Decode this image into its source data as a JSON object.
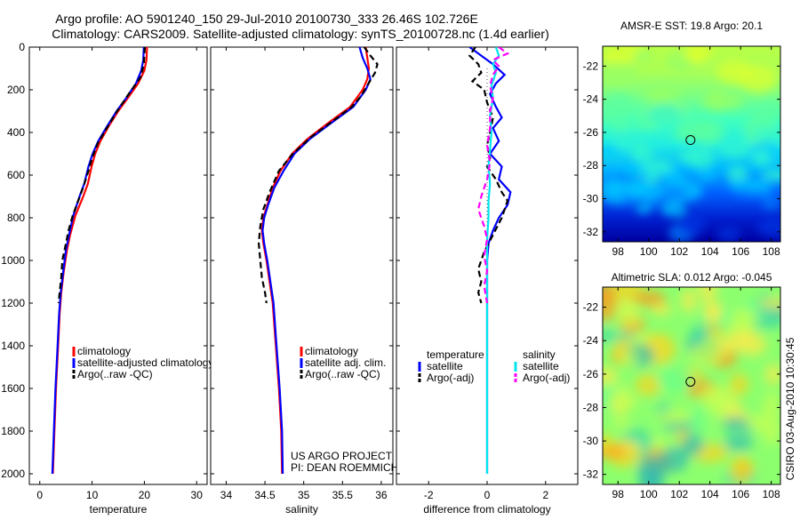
{
  "titles": {
    "line1": "Argo profile: AO 5901240_150 29-Jul-2010 20100730_333 26.46S 102.726E",
    "line2": "Climatology: CARS2009. Satellite-adjusted climatology: synTS_20100728.nc (1.4d earlier)"
  },
  "colors": {
    "climatology": "#ff0000",
    "satellite": "#0000ff",
    "argo": "#000000",
    "sat_salinity": "#00e5ee",
    "argo_adj_salinity": "#ff00ff"
  },
  "depth_axis": {
    "ticks": [
      "0",
      "200",
      "400",
      "600",
      "800",
      "1000",
      "1200",
      "1400",
      "1600",
      "1800",
      "2000"
    ],
    "values": [
      0,
      200,
      400,
      600,
      800,
      1000,
      1200,
      1400,
      1600,
      1800,
      2000
    ],
    "range": [
      0,
      2050
    ]
  },
  "chart_data": [
    {
      "id": "temperature",
      "type": "line",
      "xlabel": "temperature",
      "xlim": [
        -2,
        32
      ],
      "xticks": [
        0,
        10,
        20,
        30
      ],
      "xtick_labels": [
        "0",
        "10",
        "20",
        "30"
      ],
      "legend": [
        "climatology",
        "satellite-adjusted climatology",
        "Argo(..raw -QC)"
      ],
      "series": [
        {
          "name": "climatology",
          "style": "solid",
          "color": "#ff0000",
          "points": [
            [
              20.5,
              0
            ],
            [
              20.4,
              60
            ],
            [
              20.0,
              110
            ],
            [
              18.8,
              170
            ],
            [
              16.8,
              240
            ],
            [
              15.0,
              300
            ],
            [
              13.2,
              370
            ],
            [
              11.6,
              440
            ],
            [
              10.6,
              500
            ],
            [
              9.9,
              560
            ],
            [
              9.2,
              640
            ],
            [
              8.3,
              700
            ],
            [
              6.8,
              790
            ],
            [
              5.8,
              880
            ],
            [
              5.2,
              950
            ],
            [
              4.6,
              1050
            ],
            [
              4.1,
              1150
            ],
            [
              3.8,
              1250
            ],
            [
              3.5,
              1400
            ],
            [
              3.1,
              1600
            ],
            [
              2.8,
              1800
            ],
            [
              2.5,
              2000
            ]
          ]
        },
        {
          "name": "satellite-adjusted climatology",
          "style": "solid",
          "color": "#0000ff",
          "points": [
            [
              19.9,
              0
            ],
            [
              19.8,
              60
            ],
            [
              19.4,
              110
            ],
            [
              18.4,
              170
            ],
            [
              16.5,
              240
            ],
            [
              14.7,
              300
            ],
            [
              12.9,
              370
            ],
            [
              11.2,
              440
            ],
            [
              10.1,
              500
            ],
            [
              9.3,
              560
            ],
            [
              8.5,
              640
            ],
            [
              7.6,
              700
            ],
            [
              6.4,
              790
            ],
            [
              5.6,
              880
            ],
            [
              5.0,
              950
            ],
            [
              4.5,
              1050
            ],
            [
              4.0,
              1150
            ],
            [
              3.7,
              1250
            ],
            [
              3.4,
              1400
            ],
            [
              3.0,
              1600
            ],
            [
              2.7,
              1800
            ],
            [
              2.4,
              2000
            ]
          ]
        },
        {
          "name": "Argo(..raw -QC)",
          "style": "dashed",
          "color": "#000000",
          "points": [
            [
              20.1,
              0
            ],
            [
              19.9,
              80
            ],
            [
              19.3,
              140
            ],
            [
              17.0,
              220
            ],
            [
              14.8,
              300
            ],
            [
              12.8,
              380
            ],
            [
              11.1,
              450
            ],
            [
              10.0,
              520
            ],
            [
              9.3,
              580
            ],
            [
              8.4,
              650
            ],
            [
              7.5,
              710
            ],
            [
              6.3,
              790
            ],
            [
              5.5,
              860
            ],
            [
              5.0,
              920
            ],
            [
              4.3,
              1000
            ],
            [
              4.1,
              1080
            ],
            [
              3.8,
              1150
            ],
            [
              3.6,
              1200
            ]
          ]
        }
      ]
    },
    {
      "id": "salinity",
      "type": "line",
      "xlabel": "salinity",
      "xlim": [
        33.8,
        36.15
      ],
      "xticks": [
        34,
        34.5,
        35,
        35.5,
        36
      ],
      "xtick_labels": [
        "34",
        "34.5",
        "35",
        "35.5",
        "36"
      ],
      "legend": [
        "climatology",
        "satellite adj. clim.",
        "Argo(..raw -QC)"
      ],
      "annotation": [
        "US ARGO PROJECT",
        "PI: DEAN ROEMMICH"
      ],
      "series": [
        {
          "name": "climatology",
          "style": "solid",
          "color": "#ff0000",
          "points": [
            [
              35.8,
              0
            ],
            [
              35.82,
              50
            ],
            [
              35.84,
              100
            ],
            [
              35.82,
              150
            ],
            [
              35.76,
              200
            ],
            [
              35.6,
              280
            ],
            [
              35.3,
              360
            ],
            [
              35.05,
              430
            ],
            [
              34.85,
              500
            ],
            [
              34.7,
              580
            ],
            [
              34.6,
              660
            ],
            [
              34.53,
              740
            ],
            [
              34.48,
              800
            ],
            [
              34.46,
              860
            ],
            [
              34.48,
              920
            ],
            [
              34.52,
              1000
            ],
            [
              34.56,
              1100
            ],
            [
              34.6,
              1200
            ],
            [
              34.64,
              1400
            ],
            [
              34.68,
              1600
            ],
            [
              34.71,
              1800
            ],
            [
              34.72,
              2000
            ]
          ]
        },
        {
          "name": "satellite adj. clim.",
          "style": "solid",
          "color": "#0000ff",
          "points": [
            [
              35.72,
              0
            ],
            [
              35.76,
              50
            ],
            [
              35.82,
              100
            ],
            [
              35.86,
              150
            ],
            [
              35.8,
              200
            ],
            [
              35.64,
              280
            ],
            [
              35.34,
              360
            ],
            [
              35.08,
              430
            ],
            [
              34.88,
              500
            ],
            [
              34.74,
              580
            ],
            [
              34.62,
              660
            ],
            [
              34.54,
              740
            ],
            [
              34.49,
              800
            ],
            [
              34.47,
              860
            ],
            [
              34.49,
              920
            ],
            [
              34.53,
              1000
            ],
            [
              34.57,
              1100
            ],
            [
              34.61,
              1200
            ],
            [
              34.65,
              1400
            ],
            [
              34.69,
              1600
            ],
            [
              34.72,
              1800
            ],
            [
              34.73,
              2000
            ]
          ]
        },
        {
          "name": "Argo(..raw -QC)",
          "style": "dashed",
          "color": "#000000",
          "points": [
            [
              35.78,
              0
            ],
            [
              35.86,
              40
            ],
            [
              35.95,
              80
            ],
            [
              35.92,
              120
            ],
            [
              35.82,
              180
            ],
            [
              35.74,
              230
            ],
            [
              35.62,
              280
            ],
            [
              35.4,
              340
            ],
            [
              35.1,
              420
            ],
            [
              34.86,
              500
            ],
            [
              34.68,
              580
            ],
            [
              34.56,
              680
            ],
            [
              34.48,
              760
            ],
            [
              34.44,
              840
            ],
            [
              34.42,
              920
            ],
            [
              34.44,
              1000
            ],
            [
              34.46,
              1080
            ],
            [
              34.5,
              1150
            ],
            [
              34.52,
              1200
            ]
          ]
        }
      ]
    },
    {
      "id": "difference",
      "type": "line",
      "xlabel": "difference from climatology",
      "xlim": [
        -3.1,
        3.1
      ],
      "xticks": [
        -2,
        0,
        2
      ],
      "xtick_labels": [
        "-2",
        "0",
        "2"
      ],
      "legend_groups": [
        {
          "title": "temperature",
          "items": [
            "satellite",
            "Argo(-adj)"
          ]
        },
        {
          "title": "salinity",
          "items": [
            "satellite",
            "Argo(-adj)"
          ]
        }
      ],
      "series": [
        {
          "name": "temperature satellite",
          "style": "solid",
          "color": "#0000ff",
          "points": [
            [
              -0.6,
              0
            ],
            [
              -0.2,
              40
            ],
            [
              0.2,
              80
            ],
            [
              0.6,
              130
            ],
            [
              0.3,
              170
            ],
            [
              0.1,
              220
            ],
            [
              0.3,
              280
            ],
            [
              0.5,
              330
            ],
            [
              0.2,
              380
            ],
            [
              0.4,
              440
            ],
            [
              0.1,
              500
            ],
            [
              0.5,
              560
            ],
            [
              0.4,
              620
            ],
            [
              0.8,
              680
            ],
            [
              0.7,
              740
            ],
            [
              0.4,
              800
            ],
            [
              0.2,
              860
            ],
            [
              0.05,
              920
            ],
            [
              0.0,
              1000
            ],
            [
              0.0,
              1200
            ],
            [
              0.0,
              1600
            ],
            [
              0.0,
              2000
            ]
          ]
        },
        {
          "name": "temperature Argo(-adj)",
          "style": "dashed",
          "color": "#000000",
          "points": [
            [
              -0.4,
              0
            ],
            [
              -0.6,
              40
            ],
            [
              -0.3,
              80
            ],
            [
              -0.2,
              120
            ],
            [
              -0.5,
              160
            ],
            [
              -0.1,
              200
            ],
            [
              0.0,
              260
            ],
            [
              0.2,
              330
            ],
            [
              0.1,
              400
            ],
            [
              0.0,
              460
            ],
            [
              0.1,
              520
            ],
            [
              0.0,
              560
            ],
            [
              0.3,
              620
            ],
            [
              0.5,
              680
            ],
            [
              0.7,
              720
            ],
            [
              0.5,
              800
            ],
            [
              0.2,
              880
            ],
            [
              -0.1,
              960
            ],
            [
              -0.3,
              1040
            ],
            [
              -0.2,
              1100
            ],
            [
              -0.3,
              1150
            ],
            [
              -0.2,
              1200
            ]
          ]
        },
        {
          "name": "salinity satellite",
          "style": "solid",
          "color": "#00e5ee",
          "points": [
            [
              0.3,
              0
            ],
            [
              0.4,
              40
            ],
            [
              0.2,
              80
            ],
            [
              0.3,
              120
            ],
            [
              0.15,
              180
            ],
            [
              0.2,
              240
            ],
            [
              0.1,
              320
            ],
            [
              0.15,
              400
            ],
            [
              0.1,
              480
            ],
            [
              0.05,
              560
            ],
            [
              0.1,
              640
            ],
            [
              0.05,
              720
            ],
            [
              0.05,
              800
            ],
            [
              0.0,
              900
            ],
            [
              0.0,
              1000
            ],
            [
              0.0,
              1200
            ],
            [
              0.0,
              1600
            ],
            [
              0.0,
              2000
            ]
          ]
        },
        {
          "name": "salinity Argo(-adj)",
          "style": "dashed",
          "color": "#ff00ff",
          "points": [
            [
              0.4,
              0
            ],
            [
              0.7,
              30
            ],
            [
              0.2,
              60
            ],
            [
              0.4,
              90
            ],
            [
              0.2,
              130
            ],
            [
              0.1,
              180
            ],
            [
              0.2,
              240
            ],
            [
              0.1,
              300
            ],
            [
              0.1,
              380
            ],
            [
              0.0,
              460
            ],
            [
              0.1,
              540
            ],
            [
              0.0,
              620
            ],
            [
              -0.2,
              700
            ],
            [
              -0.3,
              760
            ],
            [
              -0.1,
              840
            ],
            [
              0.0,
              900
            ],
            [
              -0.1,
              980
            ],
            [
              0.0,
              1050
            ],
            [
              -0.1,
              1120
            ],
            [
              0.0,
              1200
            ]
          ]
        }
      ]
    },
    {
      "id": "sst_map",
      "type": "heatmap",
      "title": "AMSR-E SST: 19.8 Argo: 20.1",
      "xlim": [
        97,
        108.6
      ],
      "ylim": [
        -32.6,
        -20.8
      ],
      "xticks": [
        "98",
        "100",
        "102",
        "104",
        "106",
        "108"
      ],
      "yticks": [
        "-22",
        "-24",
        "-26",
        "-28",
        "-30",
        "-32"
      ],
      "marker": {
        "lon": 102.73,
        "lat": -26.46
      },
      "gradient_top_to_bottom": [
        "#b8ff47",
        "#aaff55",
        "#7cff82",
        "#40ffbe",
        "#22eee0",
        "#00b4ff",
        "#0060ff",
        "#0020d0",
        "#0000a0"
      ]
    },
    {
      "id": "sla_map",
      "type": "heatmap",
      "title": "Altimetric SLA: 0.012 Argo: -0.045",
      "xlim": [
        97,
        108.6
      ],
      "ylim": [
        -32.6,
        -20.8
      ],
      "xticks": [
        "98",
        "100",
        "102",
        "104",
        "106",
        "108"
      ],
      "yticks": [
        "-22",
        "-24",
        "-26",
        "-28",
        "-30",
        "-32"
      ],
      "marker": {
        "lon": 102.73,
        "lat": -26.46
      },
      "base_color": "#8cff6e"
    }
  ],
  "side_label": "CSIRO 03-Aug-2010 10:30:45"
}
